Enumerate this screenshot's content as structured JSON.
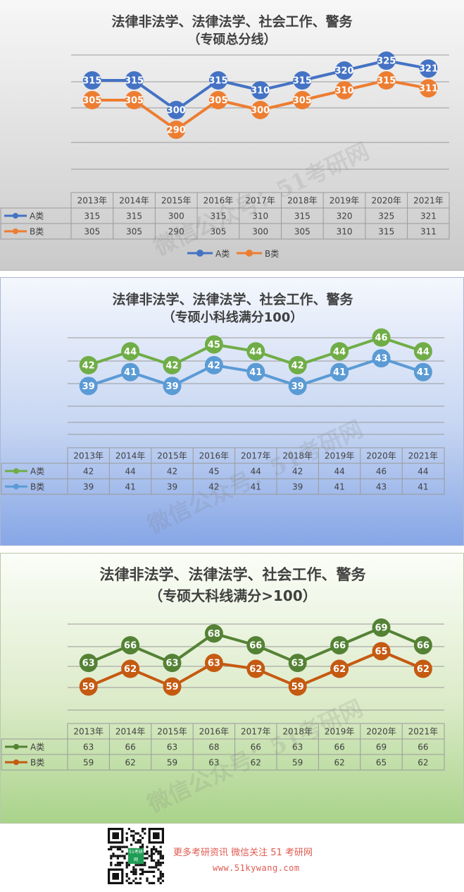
{
  "chart_data": [
    {
      "type": "line",
      "title": "法律非法学、法律法学、社会工作、警务",
      "subtitle": "（专硕总分线）",
      "categories": [
        "2013年",
        "2014年",
        "2015年",
        "2016年",
        "2017年",
        "2018年",
        "2019年",
        "2020年",
        "2021年"
      ],
      "series": [
        {
          "name": "A类",
          "values": [
            315,
            315,
            300,
            315,
            310,
            315,
            320,
            325,
            321
          ],
          "color": "#4472c4"
        },
        {
          "name": "B类",
          "values": [
            305,
            305,
            290,
            305,
            300,
            305,
            310,
            315,
            311
          ],
          "color": "#ed7d31"
        }
      ],
      "ylim": [
        270,
        335
      ],
      "grid": true,
      "legend": "bottom"
    },
    {
      "type": "line",
      "title": "法律非法学、法律法学、社会工作、警务",
      "subtitle": "（专硕小科线满分100）",
      "categories": [
        "2013年",
        "2014年",
        "2015年",
        "2016年",
        "2017年",
        "2018年",
        "2019年",
        "2020年",
        "2021年"
      ],
      "series": [
        {
          "name": "A类",
          "values": [
            42,
            44,
            42,
            45,
            44,
            42,
            44,
            46,
            44
          ],
          "color": "#70ad47"
        },
        {
          "name": "B类",
          "values": [
            39,
            41,
            39,
            42,
            41,
            39,
            41,
            43,
            41
          ],
          "color": "#5b9bd5"
        }
      ],
      "ylim": [
        32,
        48
      ],
      "grid": true,
      "legend": "none"
    },
    {
      "type": "line",
      "title": "法律非法学、法律法学、社会工作、警务",
      "subtitle": "（专硕大科线满分>100）",
      "categories": [
        "2013年",
        "2014年",
        "2015年",
        "2016年",
        "2017年",
        "2018年",
        "2019年",
        "2020年",
        "2021年"
      ],
      "series": [
        {
          "name": "A类",
          "values": [
            63,
            66,
            63,
            68,
            66,
            63,
            66,
            69,
            66
          ],
          "color": "#548235"
        },
        {
          "name": "B类",
          "values": [
            59,
            62,
            59,
            63,
            62,
            59,
            62,
            65,
            62
          ],
          "color": "#c55a11"
        }
      ],
      "ylim": [
        55,
        72
      ],
      "grid": true,
      "legend": "none"
    }
  ],
  "watermark": "微信公众号：51考研网",
  "footer": {
    "qr_badge": "51考研网",
    "line1": "更多考研资讯  微信关注 51 考研网",
    "line2": "www.51kywang.com"
  },
  "colors": {
    "title": "#404040",
    "footer_text": "#e05a4f"
  }
}
